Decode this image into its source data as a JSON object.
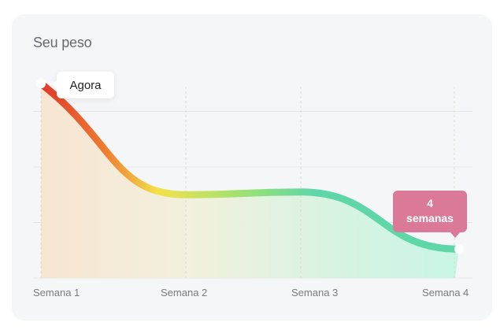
{
  "chart_data": {
    "type": "area",
    "title": "Seu peso",
    "categories": [
      "Semana 1",
      "Semana 2",
      "Semana 3",
      "Semana 4"
    ],
    "series": [
      {
        "values": [
          3.5,
          1.5,
          1.55,
          0.52
        ]
      }
    ],
    "ylim": [
      0,
      4
    ],
    "grid": true,
    "annotations": {
      "start": "Agora",
      "end_line1": "4",
      "end_line2": "semanas"
    },
    "colors": {
      "start": "#e03a2a",
      "mid1": "#f0a040",
      "mid2": "#f3e24a",
      "mid3": "#8fe07c",
      "end": "#5fd6a8",
      "badge": "#db7a98"
    }
  }
}
